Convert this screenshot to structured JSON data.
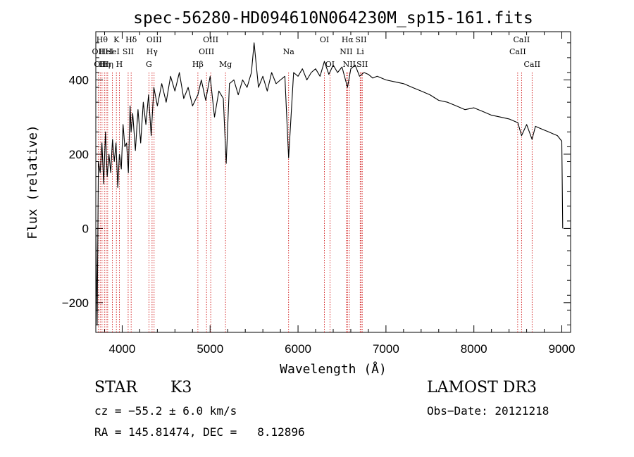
{
  "chart_data": {
    "type": "line",
    "title": "spec-56280-HD094610N064230M_sp15-161.fits",
    "xlabel": "Wavelength (Å)",
    "ylabel": "Flux (relative)",
    "xlim": [
      3700,
      9100
    ],
    "ylim": [
      -280,
      530
    ],
    "x_ticks": [
      4000,
      5000,
      6000,
      7000,
      8000,
      9000
    ],
    "y_ticks": [
      -200,
      0,
      200,
      400
    ],
    "series": [
      {
        "name": "spectrum",
        "x": [
          3700,
          3715,
          3730,
          3750,
          3770,
          3790,
          3810,
          3830,
          3850,
          3870,
          3890,
          3910,
          3930,
          3950,
          3968,
          3990,
          4010,
          4030,
          4050,
          4070,
          4090,
          4101,
          4120,
          4150,
          4180,
          4210,
          4240,
          4270,
          4300,
          4330,
          4360,
          4400,
          4450,
          4500,
          4550,
          4600,
          4650,
          4700,
          4750,
          4800,
          4861,
          4900,
          4950,
          5000,
          5050,
          5100,
          5150,
          5183,
          5220,
          5270,
          5320,
          5370,
          5420,
          5470,
          5500,
          5550,
          5600,
          5650,
          5700,
          5750,
          5800,
          5850,
          5893,
          5950,
          6000,
          6050,
          6100,
          6150,
          6200,
          6250,
          6300,
          6350,
          6400,
          6450,
          6500,
          6563,
          6600,
          6650,
          6700,
          6750,
          6800,
          6850,
          6900,
          7000,
          7100,
          7200,
          7300,
          7400,
          7500,
          7600,
          7700,
          7800,
          7900,
          8000,
          8100,
          8200,
          8300,
          8400,
          8500,
          8542,
          8600,
          8662,
          8700,
          8750,
          8800,
          8850,
          8900,
          8950,
          9000,
          9010
        ],
        "values": [
          0,
          -260,
          180,
          150,
          230,
          120,
          260,
          140,
          200,
          150,
          240,
          180,
          230,
          110,
          200,
          160,
          280,
          220,
          230,
          150,
          330,
          260,
          310,
          210,
          320,
          230,
          340,
          280,
          360,
          250,
          380,
          330,
          390,
          340,
          410,
          370,
          420,
          350,
          380,
          330,
          360,
          400,
          345,
          410,
          300,
          370,
          350,
          175,
          390,
          400,
          360,
          400,
          380,
          420,
          500,
          380,
          410,
          370,
          420,
          390,
          400,
          410,
          190,
          420,
          410,
          430,
          400,
          420,
          430,
          410,
          450,
          415,
          440,
          420,
          435,
          380,
          430,
          440,
          410,
          420,
          415,
          405,
          410,
          400,
          395,
          390,
          380,
          370,
          360,
          345,
          340,
          330,
          320,
          325,
          315,
          305,
          300,
          295,
          285,
          250,
          280,
          240,
          275,
          270,
          265,
          260,
          255,
          250,
          235,
          0
        ]
      }
    ],
    "lines": [
      {
        "wavelength": 3727,
        "label": "OII",
        "row": 1
      },
      {
        "wavelength": 3750,
        "label": "OII",
        "row": 2
      },
      {
        "wavelength": 3771,
        "label": "Hθ",
        "row": 0
      },
      {
        "wavelength": 3798,
        "label": "Hη",
        "row": 2
      },
      {
        "wavelength": 3819,
        "label": "HeI",
        "row": 1
      },
      {
        "wavelength": 3835,
        "label": "Hη",
        "row": 2
      },
      {
        "wavelength": 3889,
        "label": "HeI",
        "row": 1
      },
      {
        "wavelength": 3934,
        "label": "K",
        "row": 0
      },
      {
        "wavelength": 3968,
        "label": "H",
        "row": 2
      },
      {
        "wavelength": 4068,
        "label": "SII",
        "row": 1
      },
      {
        "wavelength": 4102,
        "label": "Hδ",
        "row": 0
      },
      {
        "wavelength": 4304,
        "label": "G",
        "row": 2
      },
      {
        "wavelength": 4340,
        "label": "Hγ",
        "row": 1
      },
      {
        "wavelength": 4363,
        "label": "OIII",
        "row": 0
      },
      {
        "wavelength": 4861,
        "label": "Hβ",
        "row": 2
      },
      {
        "wavelength": 4959,
        "label": "OIII",
        "row": 1
      },
      {
        "wavelength": 5007,
        "label": "OIII",
        "row": 0
      },
      {
        "wavelength": 5175,
        "label": "Mg",
        "row": 2
      },
      {
        "wavelength": 5893,
        "label": "Na",
        "row": 1
      },
      {
        "wavelength": 6300,
        "label": "OI",
        "row": 0
      },
      {
        "wavelength": 6363,
        "label": "OI",
        "row": 2
      },
      {
        "wavelength": 6548,
        "label": "NII",
        "row": 1
      },
      {
        "wavelength": 6563,
        "label": "Hα",
        "row": 0
      },
      {
        "wavelength": 6583,
        "label": "NII",
        "row": 2
      },
      {
        "wavelength": 6707,
        "label": "Li",
        "row": 1
      },
      {
        "wavelength": 6716,
        "label": "SII",
        "row": 0
      },
      {
        "wavelength": 6730,
        "label": "SII",
        "row": 2
      },
      {
        "wavelength": 8498,
        "label": "CaII",
        "row": 1
      },
      {
        "wavelength": 8542,
        "label": "CaII",
        "row": 0
      },
      {
        "wavelength": 8662,
        "label": "CaII",
        "row": 2
      }
    ]
  },
  "info": {
    "class_label": "STAR",
    "subclass": "K3",
    "survey": "LAMOST DR3",
    "cz": "cz = −55.2 ± 6.0 km/s",
    "obs_date": "Obs−Date: 20121218",
    "radec": "RA = 145.81474, DEC =   8.12896"
  },
  "colors": {
    "line_marker": "#cc0000",
    "spectrum": "#000000",
    "axes": "#000000"
  }
}
